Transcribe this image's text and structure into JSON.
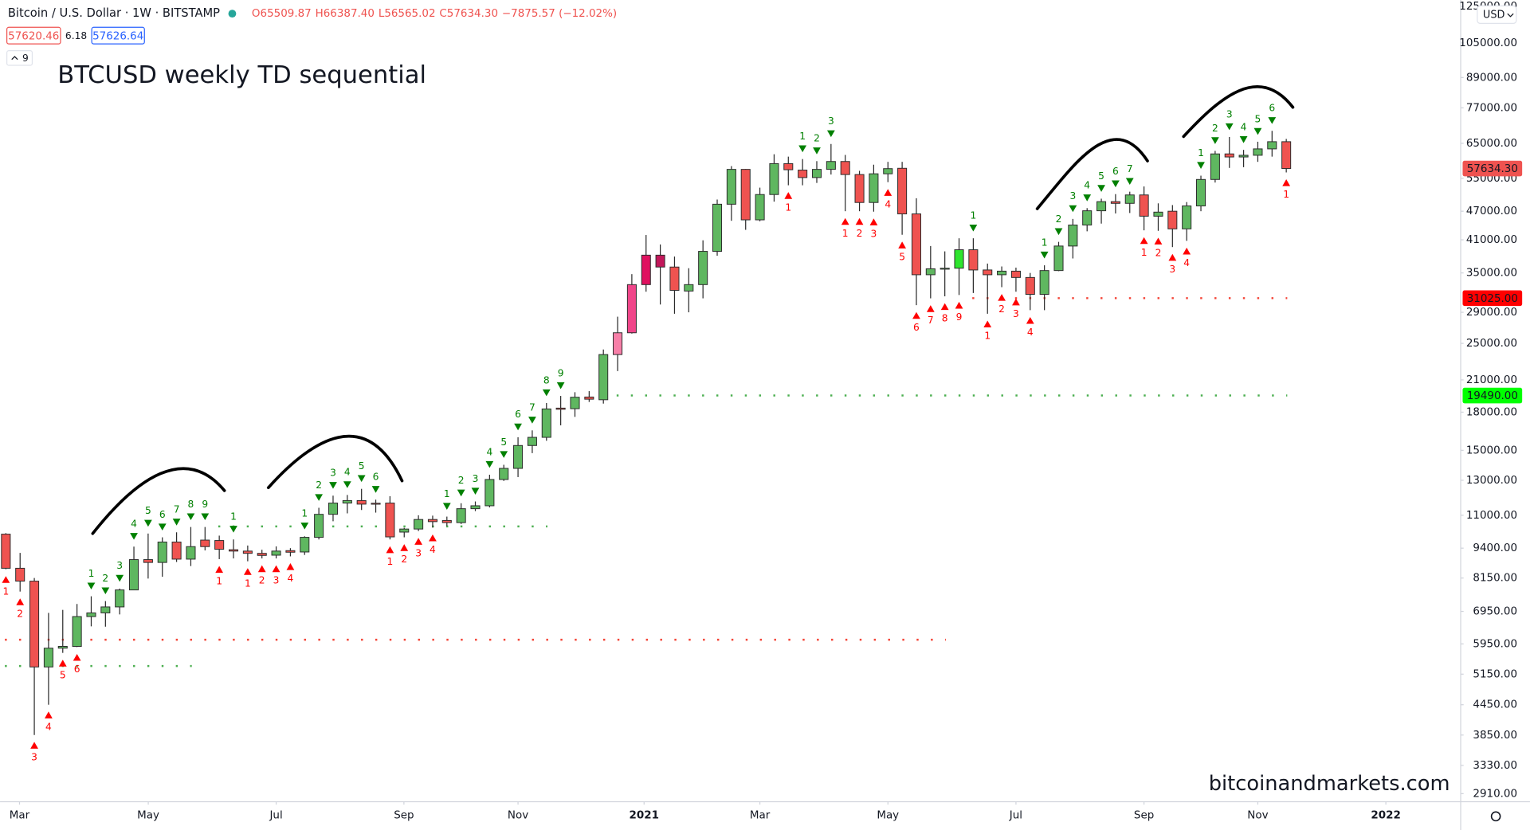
{
  "chart_data": {
    "type": "candlestick",
    "title": "BTCUSD weekly TD sequential",
    "symbol": "Bitcoin / U.S. Dollar · 1W · BITSTAMP",
    "ohlc": [
      "O65509.87",
      "H66387.40",
      "L56565.02",
      "C57634.30",
      "−7875.57 (−12.02%)"
    ],
    "bid": "57620.46",
    "spread": "6.18",
    "ask": "57626.64",
    "indicator_setting": "9",
    "currency": "USD",
    "watermark": "bitcoinandmarkets.com",
    "log_scale": true,
    "grid": false,
    "up_color": "#5fb760",
    "down_color": "#ef5350",
    "outline_color": "#2b2b2b",
    "open": [
      10050,
      8540,
      8030,
      5330,
      5830,
      5880,
      6780,
      6900,
      7100,
      7700,
      8900,
      8780,
      9680,
      8920,
      9770,
      9750,
      9330,
      9270,
      9170,
      9090,
      9290,
      9230,
      9900,
      11050,
      11660,
      11800,
      11650,
      11660,
      10150,
      10300,
      10780,
      10730,
      10620,
      11350,
      11510,
      13050,
      13760,
      15350,
      15960,
      18350,
      18300,
      19350,
      19100,
      23700,
      26300,
      33100,
      38100,
      36000,
      32100,
      33100,
      38800,
      48600,
      57400,
      45100,
      50900,
      59000,
      57200,
      55200,
      57400,
      59600,
      56000,
      49000,
      56200,
      57700,
      46400,
      34700,
      35700,
      35800,
      39100,
      35500,
      34700,
      35300,
      34250,
      31600,
      35400,
      39800,
      44000,
      47100,
      49200,
      48800,
      50800,
      45900,
      47000,
      43200,
      48200,
      54700,
      61800,
      60900,
      61400,
      63300,
      65509.87
    ],
    "high": [
      10100,
      9190,
      8150,
      6900,
      7000,
      7200,
      7470,
      7300,
      7750,
      9470,
      10080,
      9900,
      10140,
      10400,
      10400,
      9980,
      9800,
      9520,
      9330,
      9480,
      9400,
      9950,
      11400,
      12080,
      12120,
      12480,
      11850,
      12050,
      10360,
      11000,
      10980,
      10930,
      11650,
      11750,
      13350,
      14000,
      15970,
      16500,
      18800,
      19450,
      19800,
      19900,
      24280,
      28400,
      34800,
      41950,
      40100,
      37850,
      35800,
      40900,
      49700,
      58300,
      57500,
      52600,
      61700,
      61000,
      60300,
      59700,
      64800,
      61500,
      57000,
      58700,
      59500,
      59500,
      50000,
      39800,
      38800,
      41300,
      41300,
      36600,
      36100,
      35900,
      35000,
      36300,
      40600,
      45300,
      47700,
      49900,
      51000,
      51600,
      52900,
      48800,
      48400,
      49100,
      55700,
      62700,
      67000,
      63000,
      65500,
      69000,
      66387.4
    ],
    "low": [
      8500,
      7640,
      3850,
      4450,
      5700,
      5860,
      6470,
      6460,
      6850,
      7690,
      8130,
      8200,
      8800,
      8630,
      9300,
      8920,
      8950,
      8830,
      8950,
      8950,
      9040,
      9100,
      9800,
      10690,
      11100,
      11280,
      11140,
      9800,
      9900,
      10200,
      10370,
      10450,
      10550,
      11220,
      11420,
      12960,
      13200,
      14800,
      15700,
      16900,
      17600,
      18900,
      18750,
      21900,
      26200,
      32000,
      30100,
      28800,
      29000,
      31000,
      38000,
      44900,
      43000,
      44800,
      49200,
      53200,
      53200,
      53800,
      56000,
      47000,
      47000,
      46900,
      54000,
      42000,
      30000,
      31000,
      31300,
      31500,
      31800,
      28800,
      32700,
      32000,
      29300,
      29300,
      35300,
      37500,
      42700,
      44300,
      46500,
      46600,
      42900,
      42800,
      39600,
      40800,
      47000,
      53900,
      57800,
      58000,
      59500,
      61000,
      56565.02
    ],
    "close": [
      8540,
      8030,
      5330,
      5830,
      5880,
      6780,
      6900,
      7100,
      7700,
      8900,
      8780,
      9680,
      8920,
      9470,
      9470,
      9350,
      9270,
      9170,
      9080,
      9270,
      9220,
      9900,
      11050,
      11660,
      11800,
      11600,
      11600,
      9920,
      10300,
      10780,
      10670,
      10620,
      11350,
      11510,
      13050,
      13760,
      15350,
      15960,
      18280,
      18250,
      19330,
      19150,
      23700,
      26300,
      33100,
      38100,
      36000,
      32200,
      33100,
      38800,
      48600,
      57400,
      45100,
      50900,
      59000,
      57300,
      55200,
      57400,
      59600,
      56000,
      49000,
      56200,
      57600,
      46400,
      34700,
      35700,
      35800,
      39100,
      35500,
      34700,
      35300,
      34250,
      31600,
      35400,
      39800,
      44000,
      47100,
      49200,
      48800,
      50800,
      45900,
      46800,
      43200,
      48200,
      54700,
      61800,
      60900,
      61400,
      63300,
      65509.87,
      57634.3
    ],
    "highlights": [
      {
        "index": 43,
        "color": "#f77fa8"
      },
      {
        "index": 44,
        "color": "#f0468a"
      },
      {
        "index": 45,
        "color": "#e0115f"
      },
      {
        "index": 46,
        "color": "#c2185b"
      },
      {
        "index": 67,
        "color": "#2ee52e"
      }
    ],
    "td_sell": [
      {
        "index": 6,
        "label": "1"
      },
      {
        "index": 7,
        "label": "2"
      },
      {
        "index": 8,
        "label": "3"
      },
      {
        "index": 9,
        "label": "4"
      },
      {
        "index": 10,
        "label": "5"
      },
      {
        "index": 11,
        "label": "6"
      },
      {
        "index": 12,
        "label": "7"
      },
      {
        "index": 13,
        "label": "8"
      },
      {
        "index": 14,
        "label": "9"
      },
      {
        "index": 16,
        "label": "1"
      },
      {
        "index": 21,
        "label": "1"
      },
      {
        "index": 22,
        "label": "2"
      },
      {
        "index": 23,
        "label": "3"
      },
      {
        "index": 24,
        "label": "4"
      },
      {
        "index": 25,
        "label": "5"
      },
      {
        "index": 26,
        "label": "6"
      },
      {
        "index": 31,
        "label": "1"
      },
      {
        "index": 32,
        "label": "2"
      },
      {
        "index": 33,
        "label": "3"
      },
      {
        "index": 34,
        "label": "4"
      },
      {
        "index": 35,
        "label": "5"
      },
      {
        "index": 36,
        "label": "6"
      },
      {
        "index": 37,
        "label": "7"
      },
      {
        "index": 38,
        "label": "8"
      },
      {
        "index": 39,
        "label": "9"
      },
      {
        "index": 56,
        "label": "1"
      },
      {
        "index": 57,
        "label": "2"
      },
      {
        "index": 58,
        "label": "3"
      },
      {
        "index": 68,
        "label": "1"
      },
      {
        "index": 73,
        "label": "1"
      },
      {
        "index": 74,
        "label": "2"
      },
      {
        "index": 75,
        "label": "3"
      },
      {
        "index": 76,
        "label": "4"
      },
      {
        "index": 77,
        "label": "5"
      },
      {
        "index": 78,
        "label": "6"
      },
      {
        "index": 79,
        "label": "7"
      },
      {
        "index": 84,
        "label": "1"
      },
      {
        "index": 85,
        "label": "2"
      },
      {
        "index": 86,
        "label": "3"
      },
      {
        "index": 87,
        "label": "4"
      },
      {
        "index": 88,
        "label": "5"
      },
      {
        "index": 89,
        "label": "6"
      }
    ],
    "td_buy": [
      {
        "index": 0,
        "label": "1"
      },
      {
        "index": 1,
        "label": "2"
      },
      {
        "index": 2,
        "label": "3"
      },
      {
        "index": 3,
        "label": "4"
      },
      {
        "index": 4,
        "label": "5"
      },
      {
        "index": 5,
        "label": "6"
      },
      {
        "index": 15,
        "label": "1"
      },
      {
        "index": 17,
        "label": "1"
      },
      {
        "index": 18,
        "label": "2"
      },
      {
        "index": 19,
        "label": "3"
      },
      {
        "index": 20,
        "label": "4"
      },
      {
        "index": 27,
        "label": "1"
      },
      {
        "index": 28,
        "label": "2"
      },
      {
        "index": 29,
        "label": "3"
      },
      {
        "index": 30,
        "label": "4"
      },
      {
        "index": 55,
        "label": "1"
      },
      {
        "index": 59,
        "label": "1"
      },
      {
        "index": 60,
        "label": "2"
      },
      {
        "index": 61,
        "label": "3"
      },
      {
        "index": 62,
        "label": "4"
      },
      {
        "index": 63,
        "label": "5"
      },
      {
        "index": 64,
        "label": "6"
      },
      {
        "index": 65,
        "label": "7"
      },
      {
        "index": 66,
        "label": "8"
      },
      {
        "index": 67,
        "label": "9"
      },
      {
        "index": 69,
        "label": "1"
      },
      {
        "index": 70,
        "label": "2"
      },
      {
        "index": 71,
        "label": "3"
      },
      {
        "index": 72,
        "label": "4"
      },
      {
        "index": 80,
        "label": "1"
      },
      {
        "index": 81,
        "label": "2"
      },
      {
        "index": 82,
        "label": "3"
      },
      {
        "index": 83,
        "label": "4"
      },
      {
        "index": 90,
        "label": "1"
      }
    ],
    "levels": [
      {
        "value": 5354,
        "color": "#4caf50",
        "from": 0,
        "to": 13
      },
      {
        "value": 10430,
        "color": "#4caf50",
        "from": 15,
        "to": 38
      },
      {
        "value": 19490,
        "color": "#4caf50",
        "from": 43,
        "to": 90,
        "label": "19490.00",
        "label_color": "#00ff00"
      },
      {
        "value": 6070,
        "color": "#f44336",
        "from": 0,
        "to": 66
      },
      {
        "value": 31025,
        "color": "#f44336",
        "from": 68,
        "to": 90,
        "label": "31025.00",
        "label_color": "#ff0000"
      }
    ],
    "last_price": {
      "value": 57634.3,
      "label": "57634.30"
    },
    "ylim": [
      2800,
      128900
    ],
    "yticks": [
      {
        "value": 125000,
        "label": "125000.00"
      },
      {
        "value": 105000,
        "label": "105000.00"
      },
      {
        "value": 89000,
        "label": "89000.00"
      },
      {
        "value": 77000,
        "label": "77000.00"
      },
      {
        "value": 65000,
        "label": "65000.00"
      },
      {
        "value": 55000,
        "label": "55000.00"
      },
      {
        "value": 47000,
        "label": "47000.00"
      },
      {
        "value": 41000,
        "label": "41000.00"
      },
      {
        "value": 35000,
        "label": "35000.00"
      },
      {
        "value": 29000,
        "label": "29000.00"
      },
      {
        "value": 25000,
        "label": "25000.00"
      },
      {
        "value": 21000,
        "label": "21000.00"
      },
      {
        "value": 18000,
        "label": "18000.00"
      },
      {
        "value": 15000,
        "label": "15000.00"
      },
      {
        "value": 13000,
        "label": "13000.00"
      },
      {
        "value": 11000,
        "label": "11000.00"
      },
      {
        "value": 9400,
        "label": "9400.00"
      },
      {
        "value": 8150,
        "label": "8150.00"
      },
      {
        "value": 6950,
        "label": "6950.00"
      },
      {
        "value": 5950,
        "label": "5950.00"
      },
      {
        "value": 5150,
        "label": "5150.00"
      },
      {
        "value": 4450,
        "label": "4450.00"
      },
      {
        "value": 3850,
        "label": "3850.00"
      },
      {
        "value": 3330,
        "label": "3330.00"
      },
      {
        "value": 2910,
        "label": "2910.00"
      }
    ],
    "xlim": [
      -0.41,
      102.26
    ],
    "xticks": [
      {
        "value": 0.96,
        "label": "Mar"
      },
      {
        "value": 10.01,
        "label": "May"
      },
      {
        "value": 19.0,
        "label": "Jul"
      },
      {
        "value": 27.98,
        "label": "Sep"
      },
      {
        "value": 36.0,
        "label": "Nov"
      },
      {
        "value": 44.86,
        "label": "2021",
        "bold": true
      },
      {
        "value": 53.0,
        "label": "Mar"
      },
      {
        "value": 62.0,
        "label": "May"
      },
      {
        "value": 71.0,
        "label": "Jul"
      },
      {
        "value": 80.0,
        "label": "Sep"
      },
      {
        "value": 88.0,
        "label": "Nov"
      },
      {
        "value": 97.0,
        "label": "2022",
        "bold": true
      }
    ]
  }
}
